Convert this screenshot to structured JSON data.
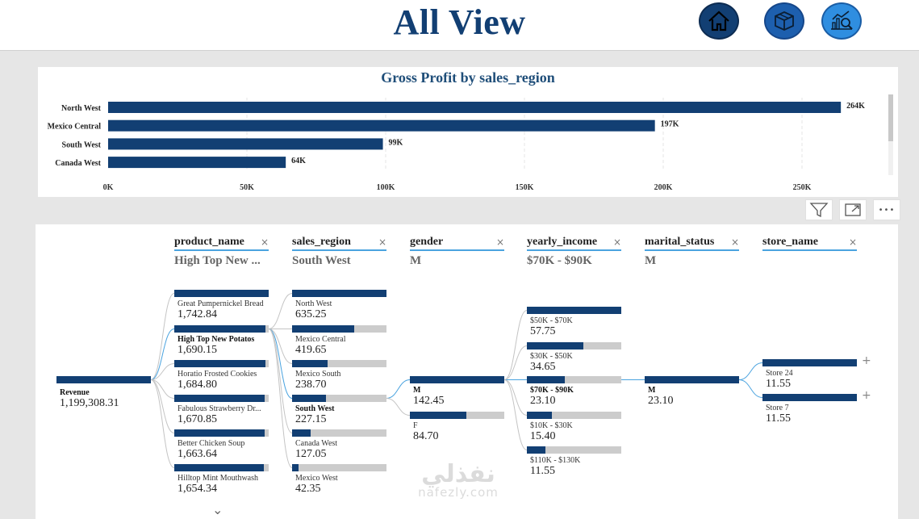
{
  "header": {
    "title": "All View",
    "nav": [
      {
        "name": "home-icon"
      },
      {
        "name": "box-icon"
      },
      {
        "name": "analytics-icon"
      }
    ]
  },
  "toolbar": {
    "filter_icon": "filter-icon",
    "focus_icon": "expand-icon",
    "more_label": "•••"
  },
  "chart_data": {
    "type": "bar",
    "orientation": "horizontal",
    "title": "Gross Profit by sales_region",
    "categories": [
      "North West",
      "Mexico Central",
      "South West",
      "Canada West"
    ],
    "values": [
      264000,
      197000,
      99000,
      64000
    ],
    "data_labels": [
      "264K",
      "197K",
      "99K",
      "64K"
    ],
    "xlim": [
      0,
      264000
    ],
    "x_ticks": [
      0,
      50000,
      100000,
      150000,
      200000,
      250000
    ],
    "x_tick_labels": [
      "0K",
      "50K",
      "100K",
      "150K",
      "200K",
      "250K"
    ],
    "grid": true,
    "bar_color": "#123f73"
  },
  "tree": {
    "root": {
      "label": "Revenue",
      "value": "1,199,308.31"
    },
    "columns": [
      {
        "key": "product_name",
        "selected": "High Top New ...",
        "nodes": [
          {
            "label": "Great Pumpernickel Bread",
            "value": "1,742.84",
            "fraction": 1.0,
            "bold": false
          },
          {
            "label": "High Top New Potatos",
            "value": "1,690.15",
            "fraction": 0.97,
            "bold": true
          },
          {
            "label": "Horatio Frosted Cookies",
            "value": "1,684.80",
            "fraction": 0.966,
            "bold": false
          },
          {
            "label": "Fabulous Strawberry Dr...",
            "value": "1,670.85",
            "fraction": 0.958,
            "bold": false
          },
          {
            "label": "Better Chicken Soup",
            "value": "1,663.64",
            "fraction": 0.954,
            "bold": false
          },
          {
            "label": "Hilltop Mint Mouthwash",
            "value": "1,654.34",
            "fraction": 0.949,
            "bold": false
          }
        ]
      },
      {
        "key": "sales_region",
        "selected": "South West",
        "nodes": [
          {
            "label": "North West",
            "value": "635.25",
            "fraction": 1.0,
            "bold": false
          },
          {
            "label": "Mexico Central",
            "value": "419.65",
            "fraction": 0.66,
            "bold": false
          },
          {
            "label": "Mexico South",
            "value": "238.70",
            "fraction": 0.376,
            "bold": false
          },
          {
            "label": "South West",
            "value": "227.15",
            "fraction": 0.358,
            "bold": true
          },
          {
            "label": "Canada West",
            "value": "127.05",
            "fraction": 0.2,
            "bold": false
          },
          {
            "label": "Mexico West",
            "value": "42.35",
            "fraction": 0.067,
            "bold": false
          }
        ]
      },
      {
        "key": "gender",
        "selected": "M",
        "nodes": [
          {
            "label": "M",
            "value": "142.45",
            "fraction": 1.0,
            "bold": true
          },
          {
            "label": "F",
            "value": "84.70",
            "fraction": 0.595,
            "bold": false
          }
        ]
      },
      {
        "key": "yearly_income",
        "selected": "$70K - $90K",
        "nodes": [
          {
            "label": "$50K - $70K",
            "value": "57.75",
            "fraction": 1.0,
            "bold": false
          },
          {
            "label": "$30K - $50K",
            "value": "34.65",
            "fraction": 0.6,
            "bold": false
          },
          {
            "label": "$70K - $90K",
            "value": "23.10",
            "fraction": 0.4,
            "bold": true
          },
          {
            "label": "$10K - $30K",
            "value": "15.40",
            "fraction": 0.267,
            "bold": false
          },
          {
            "label": "$110K - $130K",
            "value": "11.55",
            "fraction": 0.2,
            "bold": false
          }
        ]
      },
      {
        "key": "marital_status",
        "selected": "M",
        "nodes": [
          {
            "label": "M",
            "value": "23.10",
            "fraction": 1.0,
            "bold": true
          }
        ]
      },
      {
        "key": "store_name",
        "selected": "",
        "nodes": [
          {
            "label": "Store 24",
            "value": "11.55",
            "fraction": 1.0,
            "bold": false
          },
          {
            "label": "Store 7",
            "value": "11.55",
            "fraction": 1.0,
            "bold": false
          }
        ]
      }
    ],
    "close_glyph": "×",
    "expand_glyph": "+",
    "more_glyph": "⌄"
  },
  "watermark": {
    "arabic": "نفذلي",
    "latin": "nafezly.com"
  }
}
